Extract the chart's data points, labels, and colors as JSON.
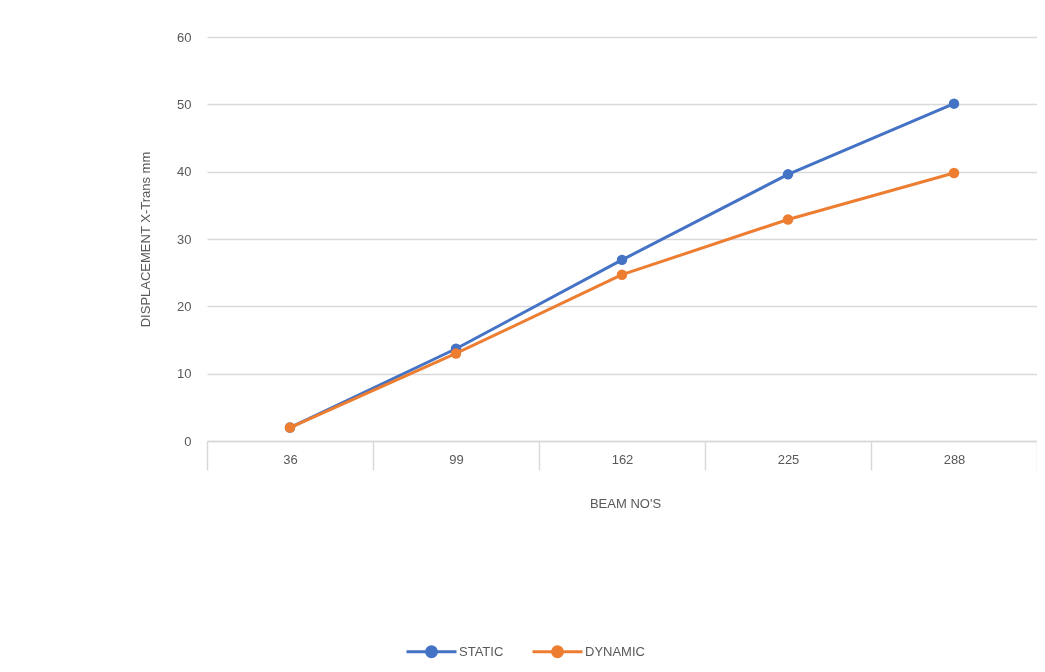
{
  "chart_data": {
    "type": "line",
    "xlabel": "BEAM NO'S",
    "ylabel": "DISPLACEMENT X-Trans mm",
    "categories": [
      "36",
      "99",
      "162",
      "225",
      "288"
    ],
    "series": [
      {
        "name": "STATIC",
        "color": "#4472c4",
        "values": [
          2,
          13.7,
          26.9,
          39.6,
          50.1
        ]
      },
      {
        "name": "DYNAMIC",
        "color": "#ed7d31",
        "values": [
          2,
          13,
          24.7,
          32.9,
          39.8
        ]
      }
    ],
    "ylim": [
      0,
      60
    ],
    "yticks": [
      0,
      10,
      20,
      30,
      40,
      50,
      60
    ],
    "grid": "y",
    "legend": "bottom",
    "marker": "circle"
  }
}
